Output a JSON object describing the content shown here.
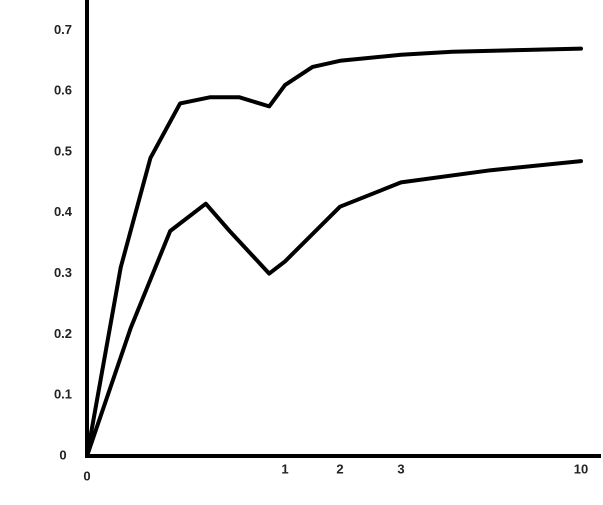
{
  "chart_data": {
    "type": "line",
    "xlim": [
      0,
      10
    ],
    "xticks": [
      0,
      1,
      2,
      3,
      10
    ],
    "ylim": [
      0,
      0.75
    ],
    "yticks": [
      0,
      0.1,
      0.2,
      0.3,
      0.4,
      0.5,
      0.6,
      0.7
    ],
    "series": [
      {
        "color": "#000000",
        "x": [
          0,
          0.17,
          0.32,
          0.47,
          0.62,
          0.77,
          0.92,
          1,
          1.5,
          2,
          3,
          5,
          10
        ],
        "values": [
          0,
          0.31,
          0.49,
          0.58,
          0.59,
          0.59,
          0.575,
          0.61,
          0.64,
          0.65,
          0.66,
          0.665,
          0.67
        ]
      },
      {
        "color": "#000000",
        "x": [
          0,
          0.22,
          0.42,
          0.6,
          0.72,
          0.92,
          1,
          2,
          3,
          6.5,
          10
        ],
        "values": [
          0,
          0.21,
          0.37,
          0.415,
          0.37,
          0.3,
          0.32,
          0.41,
          0.45,
          0.47,
          0.485
        ]
      }
    ]
  }
}
